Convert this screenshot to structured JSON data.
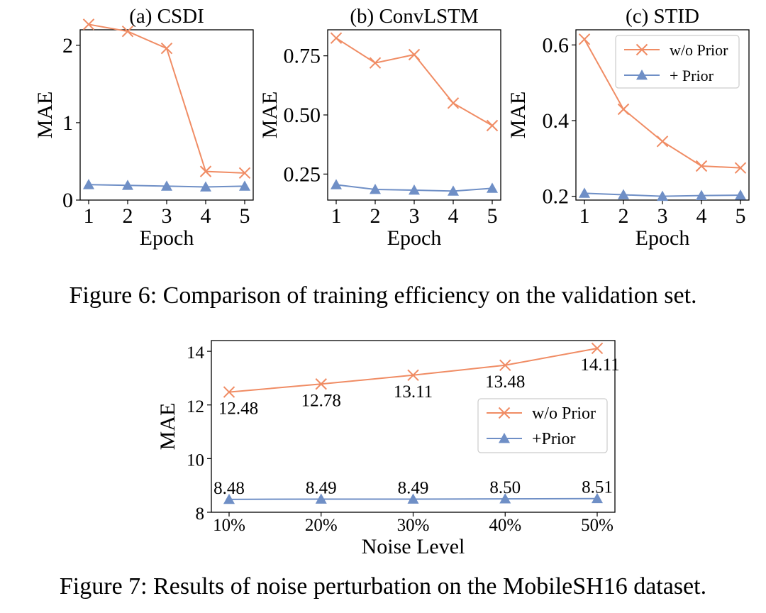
{
  "captions": {
    "fig6": "Figure 6: Comparison of training efficiency on the validation set.",
    "fig7": "Figure 7: Results of noise perturbation on the MobileSH16 dataset."
  },
  "colors": {
    "without_prior": "#f08c64",
    "with_prior": "#6f8fc6"
  },
  "chart_data": [
    {
      "type": "line",
      "title": "(a) CSDI",
      "xlabel": "Epoch",
      "ylabel": "MAE",
      "x": [
        1,
        2,
        3,
        4,
        5
      ],
      "xticks": [
        "1",
        "2",
        "3",
        "4",
        "5"
      ],
      "yticks": [
        0,
        1,
        2
      ],
      "ytick_labels": [
        "0",
        "1",
        "2"
      ],
      "ylim": [
        0,
        2.2
      ],
      "grid": false,
      "legend": "none",
      "series": [
        {
          "key": "without_prior",
          "marker": "x",
          "values": [
            2.27,
            2.18,
            1.96,
            0.37,
            0.35
          ]
        },
        {
          "key": "with_prior",
          "marker": "triangle",
          "values": [
            0.2,
            0.19,
            0.18,
            0.17,
            0.18
          ]
        }
      ]
    },
    {
      "type": "line",
      "title": "(b) ConvLSTM",
      "xlabel": "Epoch",
      "ylabel": "MAE",
      "x": [
        1,
        2,
        3,
        4,
        5
      ],
      "xticks": [
        "1",
        "2",
        "3",
        "4",
        "5"
      ],
      "yticks": [
        0.25,
        0.5,
        0.75
      ],
      "ytick_labels": [
        "0.25",
        "0.50",
        "0.75"
      ],
      "ylim": [
        0.14,
        0.86
      ],
      "grid": false,
      "legend": "none",
      "series": [
        {
          "key": "without_prior",
          "marker": "x",
          "values": [
            0.825,
            0.72,
            0.755,
            0.55,
            0.455
          ]
        },
        {
          "key": "with_prior",
          "marker": "triangle",
          "values": [
            0.205,
            0.185,
            0.182,
            0.178,
            0.19
          ]
        }
      ]
    },
    {
      "type": "line",
      "title": "(c) STID",
      "xlabel": "Epoch",
      "ylabel": "MAE",
      "x": [
        1,
        2,
        3,
        4,
        5
      ],
      "xticks": [
        "1",
        "2",
        "3",
        "4",
        "5"
      ],
      "yticks": [
        0.2,
        0.4,
        0.6
      ],
      "ytick_labels": [
        "0.2",
        "0.4",
        "0.6"
      ],
      "ylim": [
        0.19,
        0.64
      ],
      "grid": false,
      "legend": "top-right",
      "series": [
        {
          "key": "without_prior",
          "name": "w/o Prior",
          "marker": "x",
          "values": [
            0.615,
            0.43,
            0.345,
            0.28,
            0.275
          ]
        },
        {
          "key": "with_prior",
          "name": "+ Prior",
          "marker": "triangle",
          "values": [
            0.208,
            0.204,
            0.2,
            0.202,
            0.203
          ]
        }
      ]
    },
    {
      "type": "line",
      "title": "",
      "xlabel": "Noise Level",
      "ylabel": "MAE",
      "x": [
        "10%",
        "20%",
        "30%",
        "40%",
        "50%"
      ],
      "xticks": [
        "10%",
        "20%",
        "30%",
        "40%",
        "50%"
      ],
      "yticks": [
        8,
        10,
        12,
        14
      ],
      "ytick_labels": [
        "8",
        "10",
        "12",
        "14"
      ],
      "ylim": [
        8.0,
        14.4
      ],
      "grid": false,
      "legend": "center-right",
      "series": [
        {
          "key": "without_prior",
          "name": "w/o Prior",
          "marker": "x",
          "values": [
            12.48,
            12.78,
            13.11,
            13.48,
            14.11
          ],
          "labels": [
            "12.48",
            "12.78",
            "13.11",
            "13.48",
            "14.11"
          ]
        },
        {
          "key": "with_prior",
          "name": "+Prior",
          "marker": "triangle",
          "values": [
            8.48,
            8.49,
            8.49,
            8.5,
            8.51
          ],
          "labels": [
            "8.48",
            "8.49",
            "8.49",
            "8.50",
            "8.51"
          ]
        }
      ]
    }
  ]
}
